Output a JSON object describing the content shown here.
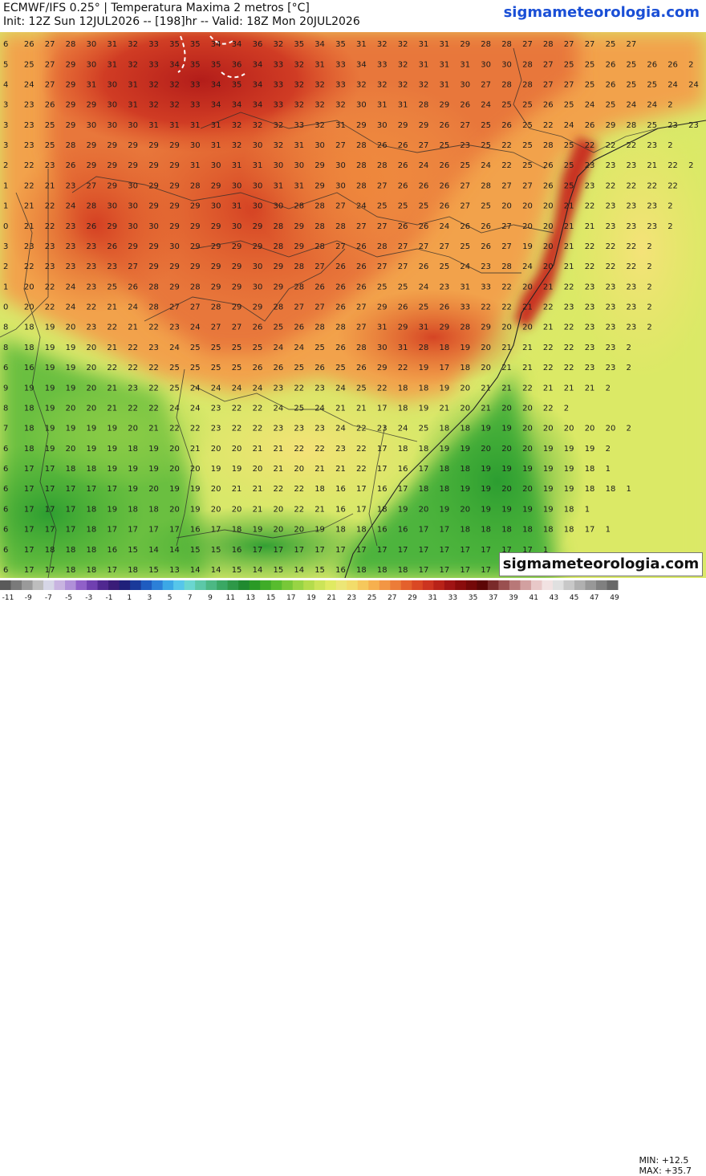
{
  "header": {
    "title_line1": "ECMWF/IFS 0.25° | Temperatura Maxima 2 metros [°C]",
    "title_line2": "Init: 12Z Sun 12JUL2026 -- [198]hr -- Valid: 18Z Mon 20JUL2026",
    "brand": "sigmameteorologia.com"
  },
  "watermark": "sigmameteorologia.com",
  "stats": {
    "min": "MIN: +12.5",
    "max": "MAX: +35.7"
  },
  "colorbar": {
    "labels": [
      "-11",
      "-9",
      "-7",
      "-5",
      "-3",
      "-1",
      "1",
      "3",
      "5",
      "7",
      "9",
      "11",
      "13",
      "15",
      "17",
      "19",
      "21",
      "23",
      "25",
      "27",
      "29",
      "31",
      "33",
      "35",
      "37",
      "39",
      "41",
      "43",
      "45",
      "47",
      "49"
    ],
    "colors": [
      "#5a5a5a",
      "#7a7a7a",
      "#9a9a9a",
      "#bdbdbd",
      "#d6d6e6",
      "#c8b4e0",
      "#b090d8",
      "#9060c8",
      "#7040b0",
      "#502890",
      "#3a1c78",
      "#20207a",
      "#1a3a9a",
      "#1f5cc0",
      "#2c80d8",
      "#3ca8e6",
      "#56c6ea",
      "#6ad6d0",
      "#5cc8a8",
      "#4cb884",
      "#3aa864",
      "#2e9848",
      "#208a30",
      "#2a9a26",
      "#40ac28",
      "#58bc2e",
      "#78c838",
      "#98d444",
      "#b4dc4c",
      "#cce458",
      "#e0ea62",
      "#ece676",
      "#f2dc6a",
      "#f6c85c",
      "#f6b04e",
      "#f29644",
      "#ec7c38",
      "#e4602c",
      "#da4824",
      "#cc3420",
      "#b82218",
      "#a01414",
      "#8a0c0c",
      "#740808",
      "#5c0606",
      "#7a2a2a",
      "#9a5050",
      "#b87878",
      "#d2a0a0",
      "#e8c8c8",
      "#f2e2e2",
      "#e0e0e0",
      "#c8c8c8",
      "#b0b0b0",
      "#989898",
      "#808080",
      "#686868"
    ]
  },
  "map": {
    "grid_values": [
      "6 26 27 28 30 31 32 33 35 35 34 34 36 32 35 34 35 31 32 32 31 31 29 28 28 27 28 27 27 25 27",
      "5 25 27 29 30 31 32 33 34 35 35 36 34 33 32 31 33 34 33 32 31 31 31 30 30 28 27 25 25 26 25 26 26 2",
      "4 24 27 29 31 30 31 32 32 33 34 35 34 33 32 32 33 32 32 32 32 31 30 27 28 28 27 27 25 26 25 25 24 24",
      "3 23 26 29 29 30 31 32 32 33 34 34 34 33 32 32 32 30 31 31 28 29 26 24 25 25 26 25 24 25 24 24 2",
      "3 23 25 29 30 30 30 31 31 31 31 32 32 32 33 32 31 29 30 29 29 26 27 25 26 25 22 24 26 29 28 25 23 23 23 2",
      "3 23 25 28 29 29 29 29 29 30 31 32 30 32 31 30 27 28 26 26 27 25 23 25 22 25 28 25 22 22 22 23 2",
      "2 22 23 26 29 29 29 29 29 31 30 31 31 30 30 29 30 28 28 26 24 26 25 24 22 25 26 25 23 23 23 21 22 2",
      "1 22 21 23 27 29 30 29 29 28 29 30 30 31 31 29 30 28 27 26 26 26 27 28 27 27 26 25 23 22 22 22 22",
      "1 21 22 24 28 30 30 29 29 29 30 31 30 30 28 28 27 24 25 25 25 26 27 25 20 20 20 21 22 23 23 23 2",
      "0 21 22 23 26 29 30 30 29 29 29 30 29 28 29 28 28 27 27 26 26 24 26 26 27 20 20 21 21 23 23 23 2",
      "3 23 23 23 23 26 29 29 30 29 29 29 29 28 29 28 27 26 28 27 27 27 25 26 27 19 20 21 22 22 22 2",
      "2 22 23 23 23 23 27 29 29 29 29 29 30 29 28 27 26 26 27 27 26 25 24 23 28 24 20 21 22 22 22 2",
      "1 20 22 24 23 25 26 28 29 28 29 29 30 29 28 26 26 26 25 25 24 23 31 33 22 20 21 22 23 23 23 2",
      "0 20 22 24 22 21 24 28 27 27 28 29 29 28 27 27 26 27 29 26 25 26 33 22 22 21 22 23 23 23 23 2",
      "8 18 19 20 23 22 21 22 23 24 27 27 26 25 26 28 28 27 31 29 31 29 28 29 20 20 21 22 23 23 23 2",
      "8 18 19 19 20 21 22 23 24 25 25 25 25 24 24 25 26 28 30 31 28 18 19 20 21 21 22 22 23 23 2",
      "6 16 19 19 20 22 22 22 25 25 25 25 26 26 25 26 25 26 29 22 19 17 18 20 21 21 22 22 23 23 2",
      "9 19 19 19 20 21 23 22 25 24 24 24 24 23 22 23 24 25 22 18 18 19 20 21 21 22 21 21 21 2",
      "8 18 19 20 20 21 22 22 24 24 23 22 22 24 25 24 21 21 17 18 19 21 20 21 20 20 22 2",
      "7 18 19 19 19 19 20 21 22 22 23 22 22 23 23 23 24 22 23 24 25 18 18 19 19 20 20 20 20 20 2",
      "6 18 19 20 19 19 18 19 20 21 20 20 21 21 22 22 23 22 17 18 18 19 19 20 20 20 19 19 19 2",
      "6 17 17 18 18 19 19 19 20 20 19 19 20 21 20 21 21 22 17 16 17 18 18 19 19 19 19 19 18 1",
      "6 17 17 17 17 17 19 20 19 19 20 21 21 22 22 18 16 17 16 17 18 18 19 19 20 20 19 19 18 18 1",
      "6 17 17 17 18 19 18 18 20 19 20 20 21 20 22 21 16 17 18 19 20 19 20 19 19 19 19 18 1",
      "6 17 17 17 18 17 17 17 17 16 17 18 19 20 20 19 18 18 16 16 17 17 18 18 18 18 18 18 17 1",
      "6 17 18 18 18 16 15 14 14 15 15 16 17 17 17 17 17 17 17 17 17 17 17 17 17 17 1",
      "6 17 17 18 18 17 18 15 13 14 14 15 14 15 14 15 16 18 18 18 17 17 17 17 18 18 18 1"
    ]
  }
}
